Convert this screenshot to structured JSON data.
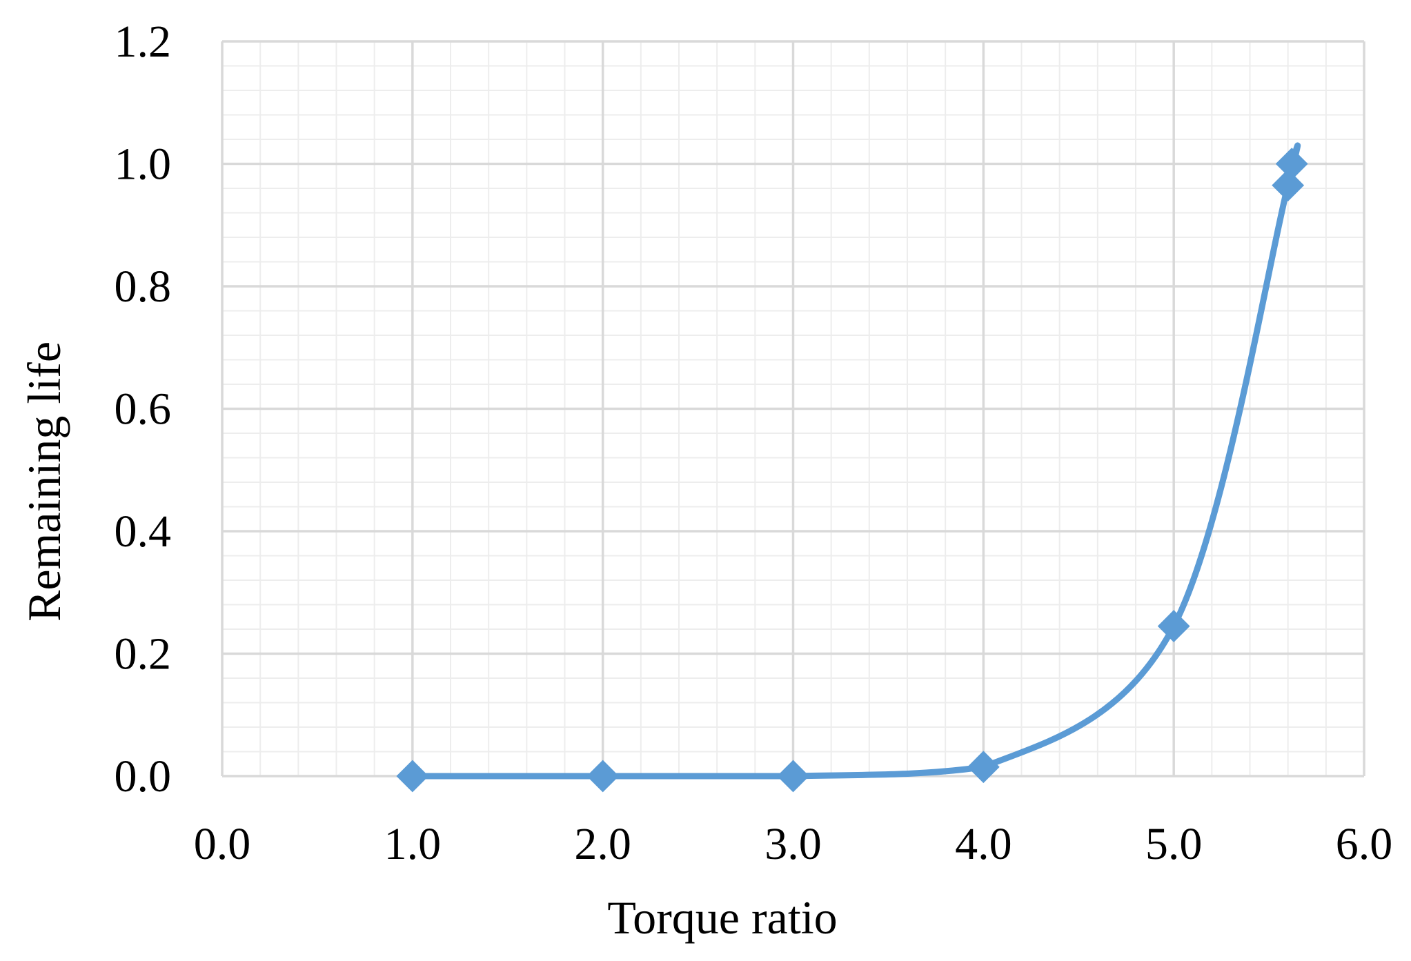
{
  "chart_data": {
    "type": "scatter",
    "title": "",
    "xlabel": "Torque ratio",
    "ylabel": "Remaining life",
    "xlim": [
      0,
      6
    ],
    "ylim": [
      0,
      1.2
    ],
    "x_ticks": [
      "0.0",
      "1.0",
      "2.0",
      "3.0",
      "4.0",
      "5.0",
      "6.0"
    ],
    "y_ticks": [
      "0.0",
      "0.2",
      "0.4",
      "0.6",
      "0.8",
      "1.0",
      "1.2"
    ],
    "grid": {
      "major": true,
      "minor": true
    },
    "legend": "none",
    "line_style": "smoothed",
    "marker": "diamond",
    "series": [
      {
        "color": "#5B9BD5",
        "x": [
          1.0,
          2.0,
          3.0,
          4.0,
          5.0,
          5.6,
          5.62
        ],
        "y": [
          0.0,
          0.0,
          0.0,
          0.015,
          0.245,
          0.965,
          1.0
        ]
      }
    ]
  }
}
